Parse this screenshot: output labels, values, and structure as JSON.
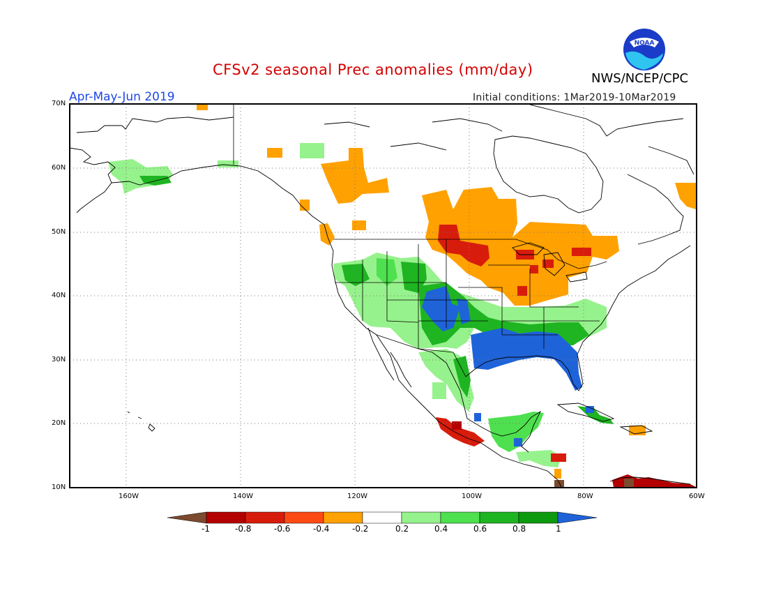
{
  "title": "CFSv2 seasonal Prec anomalies (mm/day)",
  "agency": "NWS/NCEP/CPC",
  "season": "Apr-May-Jun 2019",
  "initial_conditions": "Initial conditions: 1Mar2019-10Mar2019",
  "logo": {
    "text": "NOAA",
    "icon": "noaa-logo"
  },
  "lat_labels": [
    "70N",
    "60N",
    "50N",
    "40N",
    "30N",
    "20N",
    "10N"
  ],
  "lon_labels": [
    "160W",
    "140W",
    "120W",
    "100W",
    "80W",
    "60W"
  ],
  "colorbar": {
    "labels": [
      "-1",
      "-0.8",
      "-0.6",
      "-0.4",
      "-0.2",
      "0.2",
      "0.4",
      "0.6",
      "0.8",
      "1"
    ],
    "colors": [
      "#7b4a2f",
      "#b40000",
      "#d81c0c",
      "#ff4a14",
      "#ffa100",
      "#ffffff",
      "#96f28c",
      "#4ee04e",
      "#1fb422",
      "#0e9a0e",
      "#1f63d9"
    ]
  }
}
